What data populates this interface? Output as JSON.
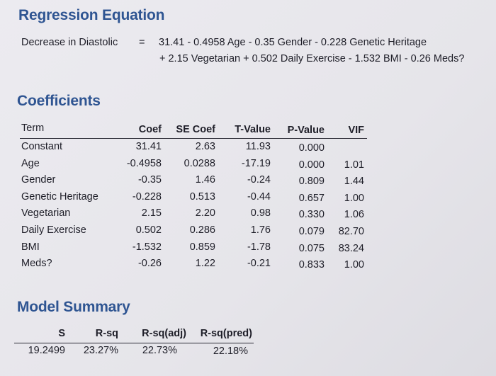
{
  "regression": {
    "title": "Regression Equation",
    "lhs": "Decrease in Diastolic",
    "equals": "=",
    "line1": "31.41 - 0.4958 Age - 0.35 Gender - 0.228 Genetic Heritage",
    "line2": "+ 2.15 Vegetarian + 0.502 Daily Exercise - 1.532 BMI - 0.26 Meds?"
  },
  "coefficients": {
    "title": "Coefficients",
    "headers": {
      "term": "Term",
      "coef": "Coef",
      "se": "SE Coef",
      "t": "T-Value",
      "p": "P-Value",
      "vif": "VIF"
    },
    "rows": [
      {
        "term": "Constant",
        "coef": "31.41",
        "se": "2.63",
        "t": "11.93",
        "p": "0.000",
        "vif": ""
      },
      {
        "term": "Age",
        "coef": "-0.4958",
        "se": "0.0288",
        "t": "-17.19",
        "p": "0.000",
        "vif": "1.01"
      },
      {
        "term": "Gender",
        "coef": "-0.35",
        "se": "1.46",
        "t": "-0.24",
        "p": "0.809",
        "vif": "1.44"
      },
      {
        "term": "Genetic Heritage",
        "coef": "-0.228",
        "se": "0.513",
        "t": "-0.44",
        "p": "0.657",
        "vif": "1.00"
      },
      {
        "term": "Vegetarian",
        "coef": "2.15",
        "se": "2.20",
        "t": "0.98",
        "p": "0.330",
        "vif": "1.06"
      },
      {
        "term": "Daily Exercise",
        "coef": "0.502",
        "se": "0.286",
        "t": "1.76",
        "p": "0.079",
        "vif": "82.70"
      },
      {
        "term": "BMI",
        "coef": "-1.532",
        "se": "0.859",
        "t": "-1.78",
        "p": "0.075",
        "vif": "83.24"
      },
      {
        "term": "Meds?",
        "coef": "-0.26",
        "se": "1.22",
        "t": "-0.21",
        "p": "0.833",
        "vif": "1.00"
      }
    ]
  },
  "model_summary": {
    "title": "Model Summary",
    "headers": {
      "s": "S",
      "rsq": "R-sq",
      "rsq_adj": "R-sq(adj)",
      "rsq_pred": "R-sq(pred)"
    },
    "values": {
      "s": "19.2499",
      "rsq": "23.27%",
      "rsq_adj": "22.73%",
      "rsq_pred": "22.18%"
    }
  }
}
